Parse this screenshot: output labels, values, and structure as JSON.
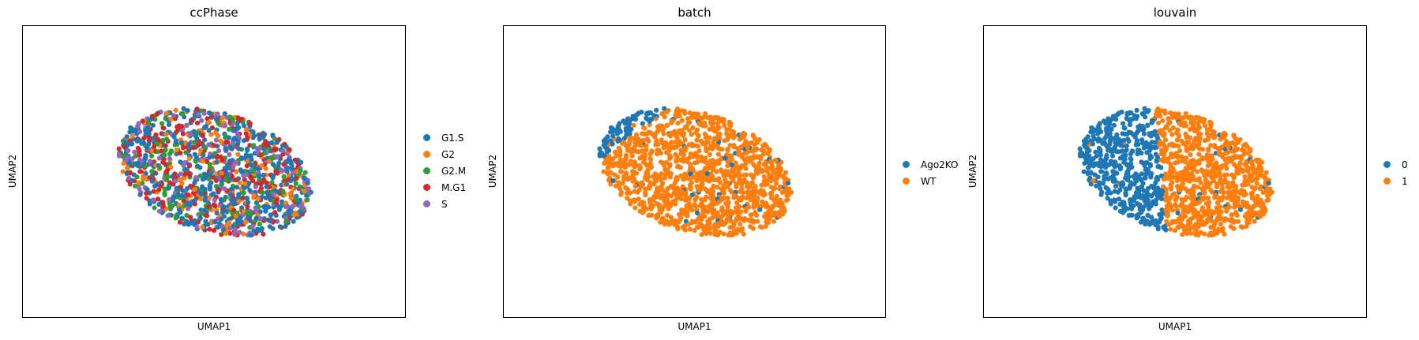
{
  "chart_data": [
    {
      "type": "scatter",
      "title": "ccPhase",
      "xlabel": "UMAP1",
      "ylabel": "UMAP2",
      "grid": false,
      "legend_position": "right",
      "categories": [
        "G1.S",
        "G2",
        "G2.M",
        "M.G1",
        "S"
      ],
      "colors": [
        "#1f77b4",
        "#ff7f0e",
        "#2ca02c",
        "#d62728",
        "#9467bd"
      ],
      "mode": "mixed",
      "weights": [
        0.38,
        0.14,
        0.14,
        0.2,
        0.14
      ]
    },
    {
      "type": "scatter",
      "title": "batch",
      "xlabel": "UMAP1",
      "ylabel": "UMAP2",
      "grid": false,
      "legend_position": "right",
      "categories": [
        "Ago2KO",
        "WT"
      ],
      "colors": [
        "#1f77b4",
        "#ff7f0e"
      ],
      "mode": "diagonal"
    },
    {
      "type": "scatter",
      "title": "louvain",
      "xlabel": "UMAP1",
      "ylabel": "UMAP2",
      "grid": false,
      "legend_position": "right",
      "categories": [
        "0",
        "1"
      ],
      "colors": [
        "#1f77b4",
        "#ff7f0e"
      ],
      "mode": "split"
    }
  ]
}
